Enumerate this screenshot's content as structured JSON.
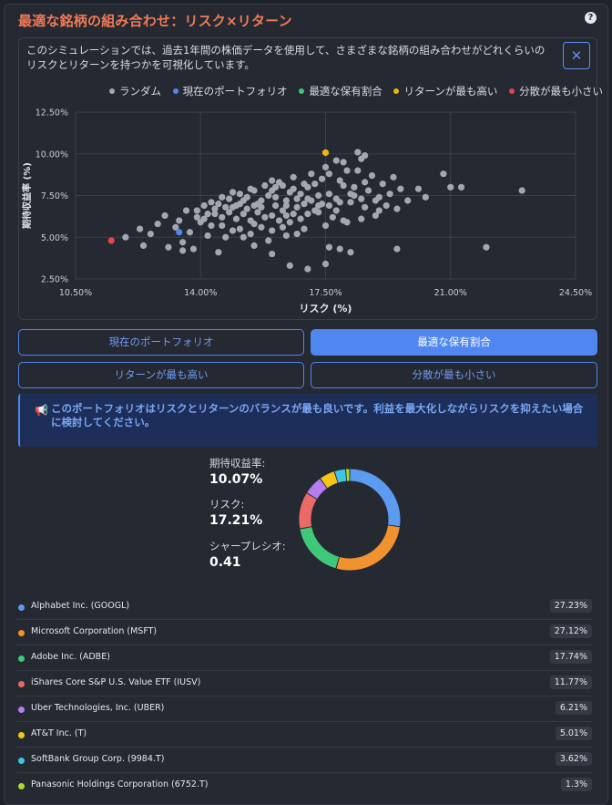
{
  "header": {
    "title": "最適な銘柄の組み合わせ：リスク×リターン",
    "help": "?"
  },
  "chart_card": {
    "description": "このシミュレーションでは、過去1年間の株価データを使用して、さまざまな銘柄の組み合わせがどれくらいのリスクとリターンを持つかを可視化しています。",
    "expand_icon": "✕"
  },
  "chart_data": {
    "type": "scatter",
    "xlabel": "リスク (%)",
    "ylabel": "期待収益率 (%)",
    "xlim": [
      10.5,
      24.5
    ],
    "ylim": [
      2.5,
      12.5
    ],
    "x_ticks": [
      "10.50%",
      "14.00%",
      "17.50%",
      "21.00%",
      "24.50%"
    ],
    "y_ticks": [
      "12.50%",
      "10.00%",
      "7.50%",
      "5.00%",
      "2.50%"
    ],
    "legend": [
      {
        "label": "ランダム",
        "color": "#a3a7b0"
      },
      {
        "label": "現在のポートフォリオ",
        "color": "#4f86f0"
      },
      {
        "label": "最適な保有割合",
        "color": "#3cc86e"
      },
      {
        "label": "リターンが最も高い",
        "color": "#f0b40f"
      },
      {
        "label": "分散が最も小さい",
        "color": "#e64646"
      }
    ],
    "series": [
      {
        "name": "ランダム",
        "color": "#a3a7b0",
        "points": [
          [
            11.9,
            5.0
          ],
          [
            12.3,
            5.5
          ],
          [
            12.6,
            5.2
          ],
          [
            12.8,
            5.8
          ],
          [
            13.0,
            6.3
          ],
          [
            13.1,
            4.4
          ],
          [
            13.3,
            5.6
          ],
          [
            13.4,
            6.0
          ],
          [
            13.5,
            4.7
          ],
          [
            13.6,
            6.6
          ],
          [
            13.7,
            5.3
          ],
          [
            13.8,
            4.3
          ],
          [
            13.9,
            6.2
          ],
          [
            14.0,
            5.9
          ],
          [
            14.1,
            6.9
          ],
          [
            14.2,
            5.1
          ],
          [
            14.3,
            7.1
          ],
          [
            14.4,
            6.4
          ],
          [
            14.5,
            4.1
          ],
          [
            14.6,
            5.7
          ],
          [
            14.7,
            6.8
          ],
          [
            14.8,
            7.3
          ],
          [
            14.9,
            5.4
          ],
          [
            15.0,
            6.1
          ],
          [
            15.1,
            7.6
          ],
          [
            15.2,
            5.0
          ],
          [
            15.3,
            6.7
          ],
          [
            15.4,
            7.9
          ],
          [
            15.5,
            5.8
          ],
          [
            15.6,
            6.5
          ],
          [
            15.7,
            7.2
          ],
          [
            15.8,
            8.1
          ],
          [
            15.9,
            4.8
          ],
          [
            16.0,
            6.3
          ],
          [
            16.1,
            7.4
          ],
          [
            16.2,
            8.3
          ],
          [
            16.3,
            5.6
          ],
          [
            16.4,
            6.9
          ],
          [
            16.5,
            7.7
          ],
          [
            16.6,
            8.6
          ],
          [
            16.7,
            5.2
          ],
          [
            16.8,
            6.1
          ],
          [
            16.9,
            7.0
          ],
          [
            17.0,
            8.0
          ],
          [
            17.1,
            8.8
          ],
          [
            17.2,
            6.6
          ],
          [
            17.3,
            7.5
          ],
          [
            17.4,
            8.5
          ],
          [
            17.5,
            9.2
          ],
          [
            17.6,
            4.4
          ],
          [
            17.7,
            6.2
          ],
          [
            17.8,
            7.3
          ],
          [
            17.9,
            8.4
          ],
          [
            18.0,
            9.5
          ],
          [
            18.1,
            5.9
          ],
          [
            18.2,
            7.1
          ],
          [
            18.3,
            8.0
          ],
          [
            18.4,
            9.0
          ],
          [
            18.5,
            9.7
          ],
          [
            18.6,
            6.8
          ],
          [
            18.7,
            7.8
          ],
          [
            18.8,
            8.7
          ],
          [
            18.9,
            6.3
          ],
          [
            19.0,
            7.4
          ],
          [
            19.1,
            8.2
          ],
          [
            19.2,
            6.9
          ],
          [
            19.3,
            7.6
          ],
          [
            19.4,
            8.6
          ],
          [
            19.5,
            6.7
          ],
          [
            19.6,
            7.9
          ],
          [
            15.0,
            6.9
          ],
          [
            15.3,
            7.4
          ],
          [
            15.6,
            7.0
          ],
          [
            16.0,
            7.8
          ],
          [
            16.2,
            6.0
          ],
          [
            16.4,
            7.2
          ],
          [
            16.8,
            7.6
          ],
          [
            17.0,
            6.4
          ],
          [
            17.2,
            8.2
          ],
          [
            17.4,
            7.0
          ],
          [
            15.8,
            6.2
          ],
          [
            16.3,
            6.6
          ],
          [
            16.6,
            6.4
          ],
          [
            17.1,
            7.2
          ],
          [
            14.6,
            6.2
          ],
          [
            14.9,
            6.8
          ],
          [
            15.2,
            6.4
          ],
          [
            15.5,
            6.9
          ],
          [
            15.9,
            7.5
          ],
          [
            16.1,
            8.0
          ],
          [
            16.5,
            5.9
          ],
          [
            16.7,
            7.3
          ],
          [
            17.3,
            6.9
          ],
          [
            17.6,
            7.6
          ],
          [
            17.8,
            6.6
          ],
          [
            18.0,
            8.1
          ],
          [
            18.3,
            7.5
          ],
          [
            18.6,
            8.3
          ],
          [
            18.9,
            7.2
          ],
          [
            14.3,
            5.7
          ],
          [
            14.7,
            5.0
          ],
          [
            15.1,
            5.5
          ],
          [
            15.4,
            5.2
          ],
          [
            15.7,
            5.6
          ],
          [
            16.0,
            5.4
          ],
          [
            16.4,
            5.1
          ],
          [
            16.9,
            5.5
          ],
          [
            17.5,
            5.7
          ],
          [
            18.0,
            6.0
          ],
          [
            18.5,
            6.1
          ],
          [
            19.0,
            6.6
          ],
          [
            19.8,
            7.2
          ],
          [
            20.1,
            7.9
          ],
          [
            20.3,
            7.4
          ],
          [
            20.8,
            8.8
          ],
          [
            21.0,
            8.0
          ],
          [
            21.3,
            8.0
          ],
          [
            22.0,
            4.4
          ],
          [
            23.0,
            7.8
          ],
          [
            19.5,
            4.3
          ],
          [
            16.5,
            3.3
          ],
          [
            17.0,
            3.1
          ],
          [
            17.5,
            3.4
          ],
          [
            17.9,
            4.3
          ],
          [
            18.2,
            4.1
          ],
          [
            16.0,
            4.0
          ],
          [
            15.5,
            4.5
          ],
          [
            13.5,
            4.2
          ],
          [
            12.4,
            4.5
          ],
          [
            18.6,
            9.9
          ],
          [
            17.8,
            9.6
          ],
          [
            18.4,
            10.1
          ],
          [
            17.6,
            8.8
          ],
          [
            18.1,
            9.0
          ],
          [
            13.9,
            6.6
          ],
          [
            14.2,
            6.4
          ],
          [
            14.5,
            7.0
          ],
          [
            14.8,
            6.5
          ],
          [
            15.1,
            7.0
          ],
          [
            15.4,
            6.0
          ],
          [
            15.7,
            6.8
          ],
          [
            16.1,
            6.9
          ],
          [
            16.4,
            6.3
          ],
          [
            16.7,
            6.8
          ],
          [
            17.0,
            7.3
          ],
          [
            17.3,
            6.5
          ],
          [
            17.6,
            6.9
          ],
          [
            17.9,
            7.1
          ],
          [
            18.2,
            7.6
          ],
          [
            18.5,
            7.3
          ],
          [
            16.0,
            8.4
          ],
          [
            16.3,
            8.1
          ],
          [
            16.6,
            7.9
          ],
          [
            16.9,
            8.2
          ],
          [
            15.5,
            7.8
          ],
          [
            15.2,
            7.2
          ],
          [
            14.9,
            7.7
          ],
          [
            14.6,
            7.4
          ],
          [
            14.4,
            6.7
          ],
          [
            14.1,
            6.1
          ]
        ]
      },
      {
        "name": "現在のポートフォリオ",
        "color": "#4f86f0",
        "points": [
          [
            13.4,
            5.3
          ]
        ]
      },
      {
        "name": "リターンが最も高い",
        "color": "#f0b40f",
        "points": [
          [
            17.5,
            10.07
          ]
        ]
      },
      {
        "name": "分散が最も小さい",
        "color": "#e64646",
        "points": [
          [
            11.5,
            4.8
          ]
        ]
      }
    ]
  },
  "buttons": {
    "current": "現在のポートフォリオ",
    "optimal": "最適な保有割合",
    "highest_return": "リターンが最も高い",
    "min_variance": "分散が最も小さい"
  },
  "notice": {
    "icon": "📢",
    "text": "このポートフォリオはリスクとリターンのバランスが最も良いです。利益を最大化しながらリスクを抑えたい場合に検討してください。"
  },
  "stats": {
    "expected_return_label": "期待収益率:",
    "expected_return_value": "10.07%",
    "risk_label": "リスク:",
    "risk_value": "17.21%",
    "sharpe_label": "シャープレシオ:",
    "sharpe_value": "0.41"
  },
  "holdings": [
    {
      "name": "Alphabet Inc. (GOOGL)",
      "pct": "27.23%",
      "value": 27.23,
      "color": "#5b9bf0"
    },
    {
      "name": "Microsoft Corporation (MSFT)",
      "pct": "27.12%",
      "value": 27.12,
      "color": "#f0922f"
    },
    {
      "name": "Adobe Inc. (ADBE)",
      "pct": "17.74%",
      "value": 17.74,
      "color": "#3ec97a"
    },
    {
      "name": "iShares Core S&P U.S. Value ETF (IUSV)",
      "pct": "11.77%",
      "value": 11.77,
      "color": "#eb6a68"
    },
    {
      "name": "Uber Technologies, Inc. (UBER)",
      "pct": "6.21%",
      "value": 6.21,
      "color": "#b57cf0"
    },
    {
      "name": "AT&T Inc. (T)",
      "pct": "5.01%",
      "value": 5.01,
      "color": "#f5c518"
    },
    {
      "name": "SoftBank Group Corp. (9984.T)",
      "pct": "3.62%",
      "value": 3.62,
      "color": "#3fc6e6"
    },
    {
      "name": "Panasonic Holdings Corporation (6752.T)",
      "pct": "1.3%",
      "value": 1.3,
      "color": "#a8dc2a"
    }
  ]
}
